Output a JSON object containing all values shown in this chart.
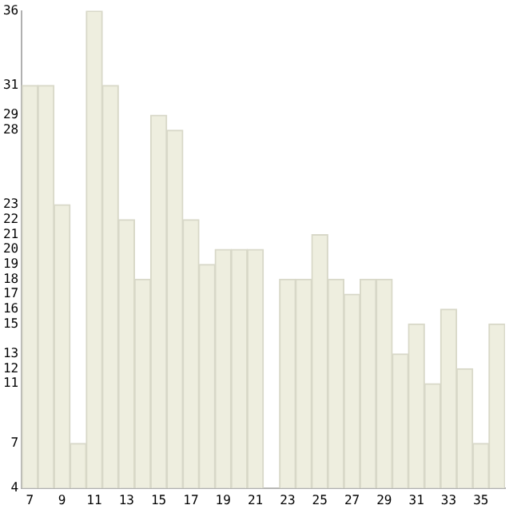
{
  "chart_data": {
    "type": "bar",
    "categories": [
      "7",
      null,
      "9",
      null,
      "11",
      null,
      "13",
      null,
      "15",
      null,
      "17",
      null,
      "19",
      null,
      "21",
      null,
      "23",
      null,
      "25",
      null,
      "27",
      null,
      "29",
      null,
      "31",
      null,
      "33",
      null,
      "35",
      null
    ],
    "values": [
      31,
      31,
      23,
      7,
      36,
      31,
      22,
      18,
      29,
      28,
      22,
      19,
      20,
      20,
      20,
      4,
      18,
      18,
      21,
      18,
      17,
      18,
      18,
      13,
      15,
      11,
      16,
      12,
      7,
      15
    ],
    "color": "#eeeedf",
    "ylim": [
      4,
      36
    ],
    "yticks": [
      4,
      7,
      11,
      12,
      13,
      15,
      16,
      17,
      18,
      19,
      20,
      21,
      22,
      23,
      28,
      29,
      31,
      36
    ],
    "grid": false,
    "legend": false
  }
}
